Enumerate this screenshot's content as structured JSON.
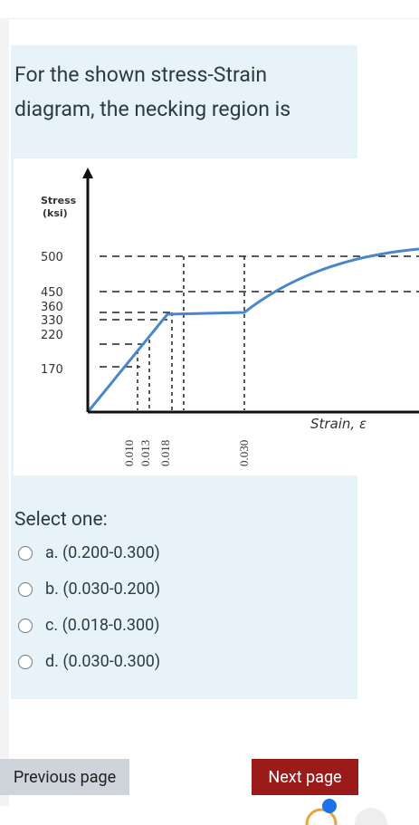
{
  "question": {
    "text": "For the shown stress-Strain diagram, the necking region is"
  },
  "figure": {
    "y_axis_label": [
      "Stress",
      "(ksi)"
    ],
    "y_ticks": [
      "500",
      "450",
      "360",
      "330",
      "220",
      "170"
    ],
    "x_axis_label": "Strain, ε",
    "x_ticks": [
      "0.010",
      "0.013",
      "0.018",
      "0.030"
    ]
  },
  "prompt": "Select one:",
  "options": [
    "a. (0.200-0.300)",
    "b. (0.030-0.200)",
    "c. (0.018-0.300)",
    "d. (0.030-0.300)"
  ],
  "buttons": {
    "previous": "Previous page",
    "next": "Next page"
  }
}
